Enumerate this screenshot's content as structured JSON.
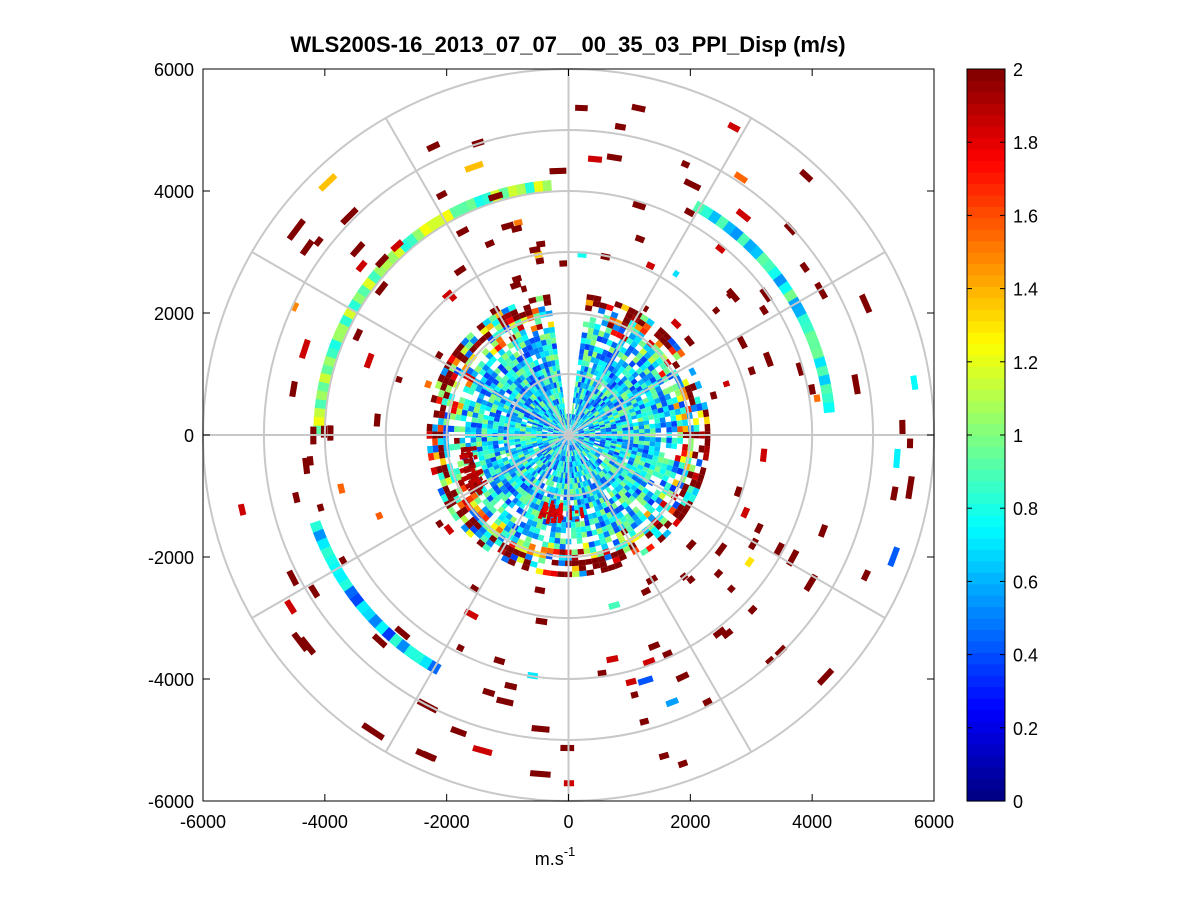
{
  "chart_data": {
    "type": "heatmap",
    "subtype": "polar-ppi",
    "title": "WLS200S-16_2013_07_07__00_35_03_PPI_Disp (m/s)",
    "xlabel_base": "m.s",
    "xlabel_exponent": "-1",
    "ylabel": "",
    "xlim": [
      -6000,
      6000
    ],
    "ylim": [
      -6000,
      6000
    ],
    "x_ticks": [
      "-6000",
      "-4000",
      "-2000",
      "0",
      "2000",
      "4000",
      "6000"
    ],
    "y_ticks": [
      "6000",
      "4000",
      "2000",
      "0",
      "-2000",
      "-4000",
      "-6000"
    ],
    "range_rings": [
      1000,
      2000,
      3000,
      4000,
      5000,
      6000
    ],
    "spokes_deg": [
      0,
      30,
      60,
      90,
      120,
      150,
      180,
      210,
      240,
      270,
      300,
      330
    ],
    "colorbar": {
      "colormap": "jet",
      "min": 0,
      "max": 2,
      "tick_labels": [
        "2",
        "1.8",
        "1.6",
        "1.4",
        "1.2",
        "1",
        "0.8",
        "0.6",
        "0.4",
        "0.2",
        "0"
      ]
    },
    "dense_region": {
      "r_min": 0,
      "r_max": 2300,
      "typical_value": 0.7
    },
    "notable_features": [
      {
        "label": "inner core high (~2)",
        "angle_deg": 200,
        "r": 1700,
        "value": 2
      },
      {
        "label": "red arc south",
        "angle_deg": 265,
        "r": 1300,
        "value": 1.9
      },
      {
        "label": "outer arc east",
        "from_deg": 60,
        "to_deg": 5,
        "r": 4300,
        "value": 0.75
      },
      {
        "label": "outer arc west",
        "from_deg": 95,
        "to_deg": 180,
        "r": 4100,
        "value": 1.0
      },
      {
        "label": "ring band south-west",
        "from_deg": 200,
        "to_deg": 240,
        "r": 4400,
        "value": 0.6
      }
    ]
  }
}
